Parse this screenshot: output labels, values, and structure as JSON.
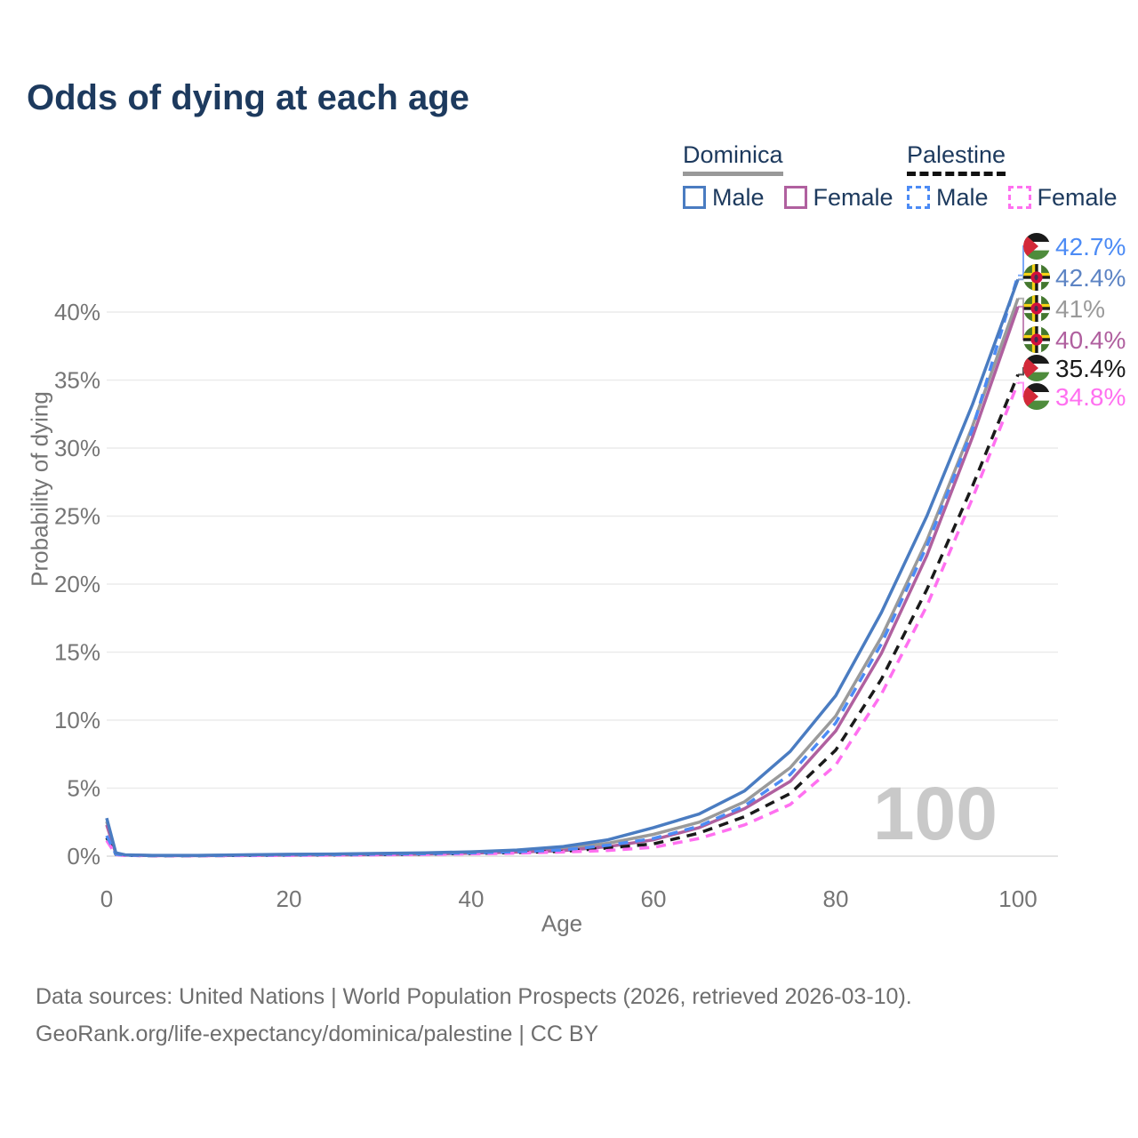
{
  "title": "Odds of dying at each age",
  "legend": {
    "groups": [
      {
        "country": "Dominica",
        "line_style": "solid",
        "line_color": "#999999",
        "items": [
          {
            "label": "Male",
            "color": "#4a7cc1",
            "dashed": false
          },
          {
            "label": "Female",
            "color": "#b0609f",
            "dashed": false
          }
        ]
      },
      {
        "country": "Palestine",
        "line_style": "dashed",
        "line_color": "#111111",
        "items": [
          {
            "label": "Male",
            "color": "#4c8bf5",
            "dashed": true
          },
          {
            "label": "Female",
            "color": "#ff70f0",
            "dashed": true
          }
        ]
      }
    ]
  },
  "chart_data": {
    "type": "line",
    "title": "Odds of dying at each age",
    "xlabel": "Age",
    "ylabel": "Probability of dying",
    "x_ticks": [
      0,
      20,
      40,
      60,
      80,
      100
    ],
    "y_ticks": [
      "0%",
      "5%",
      "10%",
      "15%",
      "20%",
      "25%",
      "30%",
      "35%",
      "40%"
    ],
    "xlim": [
      0,
      100
    ],
    "ylim_pct": [
      0,
      44
    ],
    "grid": "horizontal-only",
    "legend_position": "top-right",
    "watermark": "100",
    "ages": [
      0,
      1,
      2,
      5,
      10,
      15,
      20,
      25,
      30,
      35,
      40,
      45,
      50,
      55,
      60,
      65,
      70,
      75,
      80,
      85,
      90,
      95,
      100
    ],
    "series": [
      {
        "name": "Dominica Both sexes",
        "country": "Dominica",
        "sex": "Both",
        "color": "#9a9a9a",
        "dashed": false,
        "end_value": 41,
        "values": [
          2.55,
          0.22,
          0.09,
          0.05,
          0.05,
          0.08,
          0.11,
          0.13,
          0.16,
          0.2,
          0.27,
          0.38,
          0.55,
          0.95,
          1.6,
          2.5,
          4.0,
          6.5,
          10.3,
          16.1,
          23.2,
          31.6,
          41.0
        ]
      },
      {
        "name": "Dominica Female",
        "country": "Dominica",
        "sex": "Female",
        "color": "#b0609f",
        "dashed": false,
        "end_value": 40.4,
        "values": [
          2.3,
          0.2,
          0.08,
          0.04,
          0.04,
          0.06,
          0.08,
          0.1,
          0.12,
          0.16,
          0.22,
          0.3,
          0.4,
          0.7,
          1.2,
          2.1,
          3.5,
          5.5,
          9.2,
          14.9,
          22.1,
          30.8,
          40.4
        ]
      },
      {
        "name": "Palestine Both sexes",
        "country": "Palestine",
        "sex": "Both",
        "color": "#1a1a1a",
        "dashed": true,
        "end_value": 35.4,
        "values": [
          1.35,
          0.13,
          0.06,
          0.03,
          0.03,
          0.05,
          0.08,
          0.1,
          0.12,
          0.15,
          0.2,
          0.27,
          0.35,
          0.6,
          0.9,
          1.7,
          2.9,
          4.6,
          7.8,
          13.0,
          19.6,
          27.2,
          35.4
        ]
      },
      {
        "name": "Palestine Female",
        "country": "Palestine",
        "sex": "Female",
        "color": "#ff70f0",
        "dashed": true,
        "end_value": 34.8,
        "values": [
          1.15,
          0.12,
          0.05,
          0.03,
          0.03,
          0.04,
          0.06,
          0.08,
          0.1,
          0.13,
          0.17,
          0.22,
          0.3,
          0.42,
          0.65,
          1.3,
          2.3,
          3.8,
          6.7,
          11.9,
          18.4,
          26.3,
          34.8
        ]
      },
      {
        "name": "Palestine Male",
        "country": "Palestine",
        "sex": "Male",
        "color": "#4c8bf5",
        "dashed": true,
        "end_value": 42.7,
        "values": [
          1.5,
          0.15,
          0.07,
          0.04,
          0.04,
          0.07,
          0.1,
          0.12,
          0.15,
          0.18,
          0.24,
          0.33,
          0.45,
          0.8,
          1.3,
          2.2,
          3.7,
          6.0,
          9.8,
          15.6,
          22.8,
          31.4,
          42.7
        ]
      },
      {
        "name": "Dominica Male",
        "country": "Dominica",
        "sex": "Male",
        "color": "#4a7cc1",
        "dashed": false,
        "end_value": 42.4,
        "values": [
          2.8,
          0.25,
          0.1,
          0.06,
          0.06,
          0.1,
          0.14,
          0.16,
          0.2,
          0.25,
          0.32,
          0.45,
          0.7,
          1.2,
          2.1,
          3.1,
          4.8,
          7.7,
          11.8,
          17.9,
          25.0,
          33.2,
          42.4
        ]
      }
    ],
    "end_labels": [
      {
        "text": "42.7%",
        "value": 42.7,
        "flag": "palestine",
        "color": "#4c8bf5",
        "series": "Palestine Male"
      },
      {
        "text": "42.4%",
        "value": 42.4,
        "flag": "dominica",
        "color": "#5d84c4",
        "series": "Dominica Male"
      },
      {
        "text": "41%",
        "value": 41.0,
        "flag": "dominica",
        "color": "#9a9a9a",
        "series": "Dominica Both sexes"
      },
      {
        "text": "40.4%",
        "value": 40.4,
        "flag": "dominica",
        "color": "#b0609f",
        "series": "Dominica Female"
      },
      {
        "text": "35.4%",
        "value": 35.4,
        "flag": "palestine",
        "color": "#1a1a1a",
        "series": "Palestine Both sexes"
      },
      {
        "text": "34.8%",
        "value": 34.8,
        "flag": "palestine",
        "color": "#ff70f0",
        "series": "Palestine Female"
      }
    ],
    "flag_colors": {
      "palestine": {
        "black": "#1a1a1a",
        "white": "#ffffff",
        "green": "#4e8c3c",
        "red": "#d32939"
      },
      "dominica": {
        "field_green": "#44782f",
        "yellow": "#f5d216",
        "black": "#1a1a1a",
        "white": "#ffffff",
        "red_disc": "#d0103c",
        "parrot": "#3f3150"
      }
    }
  },
  "footer": {
    "line1": "Data sources: United Nations | World Population Prospects (2026, retrieved 2026-03-10).",
    "line2": "GeoRank.org/life-expectancy/dominica/palestine | CC BY"
  }
}
